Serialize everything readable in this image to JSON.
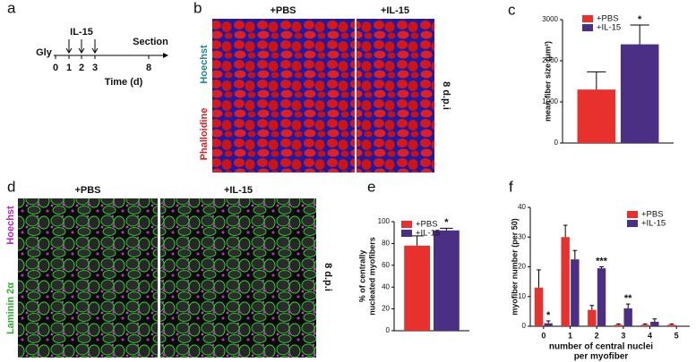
{
  "panel_labels": [
    "a",
    "b",
    "c",
    "d",
    "e",
    "f"
  ],
  "timeline": {
    "treatment": "IL-15",
    "start": "Gly",
    "end": "Section",
    "days": [
      0,
      1,
      2,
      3,
      8
    ],
    "axis_label": "Time (d)"
  },
  "images_b": {
    "columns": [
      "+PBS",
      "+IL-15"
    ],
    "stains": [
      "Hoechst",
      "Phalloidine"
    ],
    "timepoint": "8 d.p.i"
  },
  "images_d": {
    "columns": [
      "+PBS",
      "+IL-15"
    ],
    "stains": [
      "Hoechst",
      "Laminin 2α"
    ],
    "timepoint": "8 d.p.i"
  },
  "chart_data": [
    {
      "type": "bar",
      "ylabel": [
        "mean fiber size (μm²)"
      ],
      "ylim": [
        0,
        3000
      ],
      "yticks": [
        0,
        1000,
        2000,
        3000
      ],
      "series": [
        {
          "name": "+PBS",
          "color": "#e8312d",
          "values": [
            1300
          ],
          "errors": [
            430
          ]
        },
        {
          "name": "+IL-15",
          "color": "#4b2f84",
          "values": [
            2400
          ],
          "errors": [
            470
          ],
          "significance": [
            "*"
          ]
        }
      ]
    },
    {
      "type": "bar",
      "ylabel": [
        "% of centrally",
        "nucleated myofibers"
      ],
      "ylim": [
        0,
        100
      ],
      "yticks": [
        0,
        20,
        40,
        60,
        80,
        100
      ],
      "series": [
        {
          "name": "+PBS",
          "color": "#e8312d",
          "values": [
            78
          ],
          "errors": [
            9
          ]
        },
        {
          "name": "+IL-15",
          "color": "#4b2f84",
          "values": [
            92
          ],
          "errors": [
            2
          ],
          "significance": [
            "*"
          ]
        }
      ]
    },
    {
      "type": "bar",
      "ylabel": [
        "myofiber number (per 50)"
      ],
      "xlabel": [
        "number of central nuclei",
        "per myofiber"
      ],
      "categories": [
        0,
        1,
        2,
        3,
        4,
        5
      ],
      "ylim": [
        0,
        40
      ],
      "yticks": [
        0,
        10,
        20,
        30,
        40
      ],
      "series": [
        {
          "name": "+PBS",
          "color": "#e8312d",
          "values": [
            13,
            30,
            5.5,
            0.5,
            0.5,
            0.5
          ],
          "errors": [
            6,
            4,
            1.5,
            0.3,
            0.3,
            0.3
          ]
        },
        {
          "name": "+IL-15",
          "color": "#4b2f84",
          "values": [
            1,
            22.5,
            19.5,
            6,
            1.5,
            0
          ],
          "errors": [
            0.8,
            3,
            0.5,
            1.5,
            1,
            0
          ],
          "significance": [
            "*",
            null,
            "***",
            "**",
            null,
            null
          ]
        }
      ]
    }
  ]
}
